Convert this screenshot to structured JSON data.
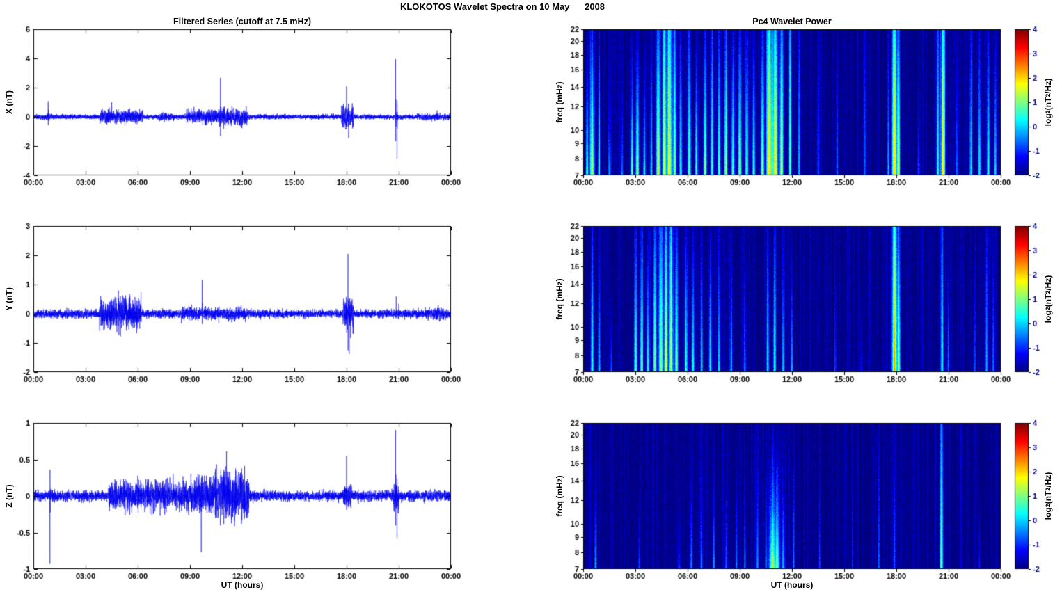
{
  "title": "KLOKOTOS Wavelet Spectra on 10 May      2008",
  "left": {
    "title": "Filtered Series (cutoff at 7.5 mHz)",
    "xlabel": "UT (hours)"
  },
  "right": {
    "title": "Pc4 Wavelet Power",
    "xlabel": "UT (hours)"
  },
  "x_axis": {
    "tick_hours": [
      0,
      3,
      6,
      9,
      12,
      15,
      18,
      21,
      24
    ],
    "tick_labels": [
      "00:00",
      "03:00",
      "06:00",
      "09:00",
      "12:00",
      "15:00",
      "18:00",
      "21:00",
      "00:00"
    ],
    "range_hours": [
      0,
      24
    ]
  },
  "freq_axis": {
    "label": "freq (mHz)",
    "ticks": [
      7,
      8,
      9,
      10,
      12,
      14,
      16,
      18,
      20,
      22
    ],
    "range": [
      7,
      22
    ],
    "scale": "log"
  },
  "colorbar": {
    "ticks": [
      4,
      3,
      2,
      1,
      0,
      -1,
      -2
    ],
    "range": [
      -2,
      4
    ],
    "label": {
      "pre": "log",
      "sub": "2",
      "mid": "(nT",
      "sup": "2",
      "post": "/Hz)"
    },
    "colormap": "jet"
  },
  "chart_data": [
    {
      "id": "x_filtered_series",
      "type": "line",
      "panel": "X",
      "title": "Filtered Series (cutoff at 7.5 mHz)",
      "ylabel": "X (nT)",
      "ylim": [
        -4,
        6
      ],
      "yticks": [
        -4,
        -2,
        0,
        2,
        4,
        6
      ],
      "ytick_labels": [
        "-4",
        "-2",
        "0",
        "2",
        "4",
        "6"
      ],
      "line_color": "#0000ee",
      "seed": 11,
      "baseline_noise_nT": 0.08,
      "envelope_format": [
        "t0_hours",
        "t1_hours",
        "noise_amp_nT"
      ],
      "activity_envelopes": [
        [
          0.7,
          1.1,
          0.12
        ],
        [
          3.8,
          6.3,
          0.22
        ],
        [
          7.2,
          8.1,
          0.14
        ],
        [
          8.8,
          10.2,
          0.25
        ],
        [
          10.2,
          12.3,
          0.3
        ],
        [
          17.7,
          18.4,
          0.35
        ],
        [
          22.0,
          24.0,
          0.12
        ]
      ],
      "spike_format": [
        "t_hours",
        "amplitude_nT"
      ],
      "spikes": [
        [
          0.85,
          1.0
        ],
        [
          4.5,
          0.6
        ],
        [
          10.75,
          2.2
        ],
        [
          18.0,
          2.3
        ],
        [
          18.12,
          -1.5
        ],
        [
          20.82,
          4.1
        ],
        [
          20.9,
          -2.9
        ],
        [
          23.2,
          0.5
        ]
      ]
    },
    {
      "id": "x_wavelet_power",
      "type": "heatmap",
      "panel": "X",
      "title": "Pc4 Wavelet Power",
      "ylabel": "freq (mHz)",
      "ylim": [
        7,
        22
      ],
      "clim": [
        -2,
        4
      ],
      "background_log2_power": -2,
      "seed": 21,
      "event_format": [
        "t_hours",
        "peak_log2_power",
        "freq_extent_decay_mHz",
        "width_hours"
      ],
      "events": [
        [
          0.2,
          3.0,
          6,
          0.05
        ],
        [
          0.5,
          3.6,
          12,
          0.09
        ],
        [
          0.9,
          2.6,
          8,
          0.05
        ],
        [
          1.5,
          2.0,
          4,
          0.05
        ],
        [
          2.2,
          1.6,
          4,
          0.05
        ],
        [
          2.8,
          3.0,
          6,
          0.06
        ],
        [
          3.1,
          3.4,
          9,
          0.07
        ],
        [
          3.5,
          2.6,
          6,
          0.05
        ],
        [
          3.9,
          2.2,
          8,
          0.05
        ],
        [
          4.3,
          3.8,
          18,
          0.08
        ],
        [
          4.65,
          3.6,
          24,
          0.08
        ],
        [
          4.95,
          3.8,
          30,
          0.1
        ],
        [
          5.25,
          3.2,
          18,
          0.07
        ],
        [
          5.6,
          2.6,
          10,
          0.06
        ],
        [
          6.1,
          3.0,
          12,
          0.07
        ],
        [
          6.5,
          2.8,
          8,
          0.06
        ],
        [
          7.0,
          3.2,
          10,
          0.07
        ],
        [
          7.4,
          3.0,
          14,
          0.06
        ],
        [
          7.8,
          2.8,
          10,
          0.06
        ],
        [
          8.2,
          3.2,
          12,
          0.07
        ],
        [
          8.6,
          3.0,
          10,
          0.06
        ],
        [
          9.0,
          3.4,
          12,
          0.07
        ],
        [
          9.4,
          3.0,
          10,
          0.06
        ],
        [
          9.8,
          2.6,
          8,
          0.06
        ],
        [
          10.3,
          3.2,
          10,
          0.07
        ],
        [
          10.7,
          4.0,
          28,
          0.12
        ],
        [
          11.05,
          4.0,
          24,
          0.1
        ],
        [
          11.4,
          3.4,
          18,
          0.07
        ],
        [
          11.9,
          3.0,
          24,
          0.05
        ],
        [
          12.4,
          2.0,
          14,
          0.05
        ],
        [
          13.5,
          1.2,
          8,
          0.05
        ],
        [
          14.6,
          1.5,
          10,
          0.05
        ],
        [
          16.2,
          1.2,
          12,
          0.05
        ],
        [
          17.55,
          1.6,
          8,
          0.05
        ],
        [
          17.9,
          4.0,
          30,
          0.1
        ],
        [
          18.15,
          3.2,
          14,
          0.06
        ],
        [
          19.3,
          1.4,
          6,
          0.05
        ],
        [
          20.4,
          2.4,
          18,
          0.06
        ],
        [
          20.7,
          4.0,
          30,
          0.09
        ],
        [
          21.5,
          1.5,
          8,
          0.05
        ],
        [
          22.3,
          2.2,
          14,
          0.06
        ],
        [
          22.8,
          2.4,
          10,
          0.06
        ],
        [
          23.3,
          2.8,
          12,
          0.06
        ],
        [
          23.7,
          2.2,
          8,
          0.05
        ]
      ]
    },
    {
      "id": "y_filtered_series",
      "type": "line",
      "panel": "Y",
      "ylabel": "Y (nT)",
      "ylim": [
        -2,
        3
      ],
      "yticks": [
        -2,
        -1,
        0,
        1,
        2,
        3
      ],
      "ytick_labels": [
        "-2",
        "-1",
        "0",
        "1",
        "2",
        "3"
      ],
      "line_color": "#0000ee",
      "seed": 12,
      "baseline_noise_nT": 0.07,
      "envelope_format": [
        "t0_hours",
        "t1_hours",
        "noise_amp_nT"
      ],
      "activity_envelopes": [
        [
          3.8,
          6.2,
          0.28
        ],
        [
          8.5,
          12.2,
          0.11
        ],
        [
          17.8,
          18.4,
          0.3
        ],
        [
          22.5,
          24.0,
          0.1
        ]
      ],
      "spike_format": [
        "t_hours",
        "amplitude_nT"
      ],
      "spikes": [
        [
          5.0,
          0.8
        ],
        [
          9.7,
          1.1
        ],
        [
          18.08,
          2.1
        ],
        [
          18.15,
          -1.15
        ],
        [
          20.85,
          0.55
        ],
        [
          21.0,
          0.4
        ]
      ]
    },
    {
      "id": "y_wavelet_power",
      "type": "heatmap",
      "panel": "Y",
      "ylabel": "freq (mHz)",
      "ylim": [
        7,
        22
      ],
      "clim": [
        -2,
        4
      ],
      "background_log2_power": -2,
      "seed": 22,
      "event_format": [
        "t_hours",
        "peak_log2_power",
        "freq_extent_decay_mHz",
        "width_hours"
      ],
      "events": [
        [
          0.5,
          2.6,
          12,
          0.07
        ],
        [
          0.9,
          2.0,
          8,
          0.05
        ],
        [
          1.6,
          1.5,
          4,
          0.05
        ],
        [
          3.0,
          2.8,
          10,
          0.06
        ],
        [
          3.35,
          3.0,
          12,
          0.06
        ],
        [
          3.7,
          2.6,
          8,
          0.06
        ],
        [
          4.1,
          3.2,
          16,
          0.07
        ],
        [
          4.45,
          3.6,
          20,
          0.08
        ],
        [
          4.75,
          3.6,
          16,
          0.08
        ],
        [
          5.05,
          3.3,
          22,
          0.08
        ],
        [
          5.35,
          3.0,
          12,
          0.07
        ],
        [
          5.9,
          2.8,
          10,
          0.06
        ],
        [
          6.3,
          2.5,
          8,
          0.06
        ],
        [
          6.8,
          2.2,
          8,
          0.05
        ],
        [
          7.3,
          2.5,
          10,
          0.06
        ],
        [
          7.8,
          2.0,
          7,
          0.05
        ],
        [
          8.5,
          2.1,
          8,
          0.05
        ],
        [
          9.3,
          1.5,
          6,
          0.05
        ],
        [
          10.6,
          2.2,
          10,
          0.06
        ],
        [
          11.0,
          2.5,
          12,
          0.06
        ],
        [
          11.5,
          2.0,
          8,
          0.05
        ],
        [
          12.0,
          1.8,
          6,
          0.05
        ],
        [
          14.5,
          1.0,
          5,
          0.05
        ],
        [
          16.0,
          0.9,
          4,
          0.05
        ],
        [
          17.9,
          4.0,
          30,
          0.1
        ],
        [
          18.15,
          3.0,
          14,
          0.06
        ],
        [
          20.65,
          2.2,
          18,
          0.06
        ],
        [
          21.0,
          1.5,
          8,
          0.05
        ],
        [
          22.5,
          1.5,
          10,
          0.05
        ],
        [
          23.2,
          1.8,
          12,
          0.05
        ],
        [
          23.6,
          1.5,
          8,
          0.05
        ]
      ]
    },
    {
      "id": "z_filtered_series",
      "type": "line",
      "panel": "Z",
      "ylabel": "Z (nT)",
      "ylim": [
        -1,
        1
      ],
      "yticks": [
        -1,
        -0.5,
        0,
        0.5,
        1
      ],
      "ytick_labels": [
        "-1",
        "-0.5",
        "0",
        "0.5",
        "1"
      ],
      "line_color": "#0000ee",
      "seed": 13,
      "baseline_noise_nT": 0.035,
      "envelope_format": [
        "t0_hours",
        "t1_hours",
        "noise_amp_nT"
      ],
      "activity_envelopes": [
        [
          4.3,
          9.0,
          0.1
        ],
        [
          9.0,
          10.4,
          0.12
        ],
        [
          10.4,
          12.4,
          0.17
        ],
        [
          17.8,
          18.3,
          0.08
        ],
        [
          20.7,
          21.0,
          0.1
        ]
      ],
      "spike_format": [
        "t_hours",
        "amplitude_nT"
      ],
      "spikes": [
        [
          0.95,
          -0.9
        ],
        [
          9.65,
          -0.85
        ],
        [
          10.95,
          0.5
        ],
        [
          11.1,
          0.45
        ],
        [
          18.0,
          0.42
        ],
        [
          20.82,
          0.9
        ],
        [
          20.9,
          -0.5
        ]
      ]
    },
    {
      "id": "z_wavelet_power",
      "type": "heatmap",
      "panel": "Z",
      "ylabel": "freq (mHz)",
      "ylim": [
        7,
        22
      ],
      "clim": [
        -2,
        4
      ],
      "background_log2_power": -2,
      "seed": 23,
      "event_format": [
        "t_hours",
        "peak_log2_power",
        "freq_extent_decay_mHz",
        "width_hours"
      ],
      "events": [
        [
          0.7,
          2.0,
          4,
          0.05
        ],
        [
          3.2,
          1.2,
          3,
          0.05
        ],
        [
          5.5,
          1.3,
          4,
          0.05
        ],
        [
          6.2,
          1.6,
          5,
          0.05
        ],
        [
          6.8,
          1.4,
          4,
          0.05
        ],
        [
          7.5,
          1.6,
          5,
          0.05
        ],
        [
          8.2,
          1.3,
          4,
          0.05
        ],
        [
          8.8,
          1.6,
          5,
          0.05
        ],
        [
          9.3,
          1.4,
          4,
          0.05
        ],
        [
          10.0,
          1.6,
          5,
          0.05
        ],
        [
          10.5,
          1.8,
          5,
          0.05
        ],
        [
          10.85,
          3.3,
          6,
          0.12
        ],
        [
          11.15,
          3.0,
          6,
          0.1
        ],
        [
          11.5,
          2.0,
          5,
          0.06
        ],
        [
          12.1,
          1.5,
          8,
          0.05
        ],
        [
          13.6,
          1.0,
          6,
          0.05
        ],
        [
          15.5,
          0.8,
          4,
          0.05
        ],
        [
          17.0,
          1.2,
          10,
          0.05
        ],
        [
          17.9,
          1.5,
          12,
          0.05
        ],
        [
          20.6,
          2.8,
          22,
          0.07
        ],
        [
          22.8,
          1.0,
          5,
          0.05
        ]
      ]
    }
  ]
}
